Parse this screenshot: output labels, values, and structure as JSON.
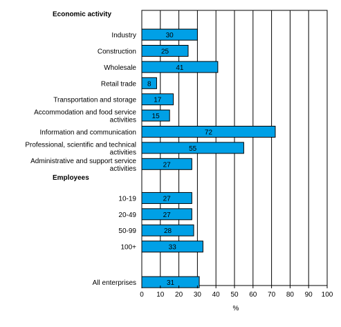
{
  "chart_data": {
    "type": "bar",
    "orientation": "horizontal",
    "groups": [
      {
        "label": "Economic activity",
        "categories": [
          {
            "label": [
              "Industry"
            ],
            "value": 30
          },
          {
            "label": [
              "Construction"
            ],
            "value": 25
          },
          {
            "label": [
              "Wholesale"
            ],
            "value": 41
          },
          {
            "label": [
              "Retail trade"
            ],
            "value": 8
          },
          {
            "label": [
              "Transportation and storage"
            ],
            "value": 17
          },
          {
            "label": [
              "Accommodation and food service",
              "activities"
            ],
            "value": 15
          },
          {
            "label": [
              "Information and communication"
            ],
            "value": 72
          },
          {
            "label": [
              "Professional, scientific and technical",
              "activities"
            ],
            "value": 55
          },
          {
            "label": [
              "Administrative and support service",
              "activities"
            ],
            "value": 27
          }
        ]
      },
      {
        "label": "Employees",
        "categories": [
          {
            "label": [
              "10-19"
            ],
            "value": 27
          },
          {
            "label": [
              "20-49"
            ],
            "value": 27
          },
          {
            "label": [
              "50-99"
            ],
            "value": 28
          },
          {
            "label": [
              "100+"
            ],
            "value": 33
          }
        ]
      },
      {
        "label": "",
        "categories": [
          {
            "label": [
              "All enterprises"
            ],
            "value": 31
          }
        ]
      }
    ],
    "xlabel": "%",
    "xlim": [
      0,
      100
    ],
    "xticks": [
      "0",
      "10",
      "20",
      "30",
      "40",
      "50",
      "60",
      "70",
      "80",
      "90",
      "100"
    ],
    "grid": "vertical lines at every tick",
    "bar_color": "#00a0e6",
    "bar_border_color": "#000000",
    "data_labels": "inside bar, centered"
  }
}
